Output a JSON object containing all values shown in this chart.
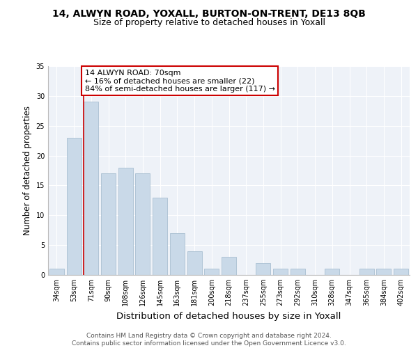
{
  "title": "14, ALWYN ROAD, YOXALL, BURTON-ON-TRENT, DE13 8QB",
  "subtitle": "Size of property relative to detached houses in Yoxall",
  "xlabel": "Distribution of detached houses by size in Yoxall",
  "ylabel": "Number of detached properties",
  "categories": [
    "34sqm",
    "53sqm",
    "71sqm",
    "90sqm",
    "108sqm",
    "126sqm",
    "145sqm",
    "163sqm",
    "181sqm",
    "200sqm",
    "218sqm",
    "237sqm",
    "255sqm",
    "273sqm",
    "292sqm",
    "310sqm",
    "328sqm",
    "347sqm",
    "365sqm",
    "384sqm",
    "402sqm"
  ],
  "values": [
    1,
    23,
    29,
    17,
    18,
    17,
    13,
    7,
    4,
    1,
    3,
    0,
    2,
    1,
    1,
    0,
    1,
    0,
    1,
    1,
    1
  ],
  "bar_color": "#c9d9e8",
  "bar_edge_color": "#a0b8cc",
  "highlight_bar_index": 2,
  "highlight_line_color": "#cc0000",
  "annotation_text": "14 ALWYN ROAD: 70sqm\n← 16% of detached houses are smaller (22)\n84% of semi-detached houses are larger (117) →",
  "annotation_box_color": "#ffffff",
  "annotation_box_edge_color": "#cc0000",
  "ylim": [
    0,
    35
  ],
  "yticks": [
    0,
    5,
    10,
    15,
    20,
    25,
    30,
    35
  ],
  "background_color": "#eef2f8",
  "footer_text": "Contains HM Land Registry data © Crown copyright and database right 2024.\nContains public sector information licensed under the Open Government Licence v3.0.",
  "title_fontsize": 10,
  "subtitle_fontsize": 9,
  "xlabel_fontsize": 9.5,
  "ylabel_fontsize": 8.5,
  "tick_fontsize": 7,
  "annotation_fontsize": 8,
  "footer_fontsize": 6.5
}
